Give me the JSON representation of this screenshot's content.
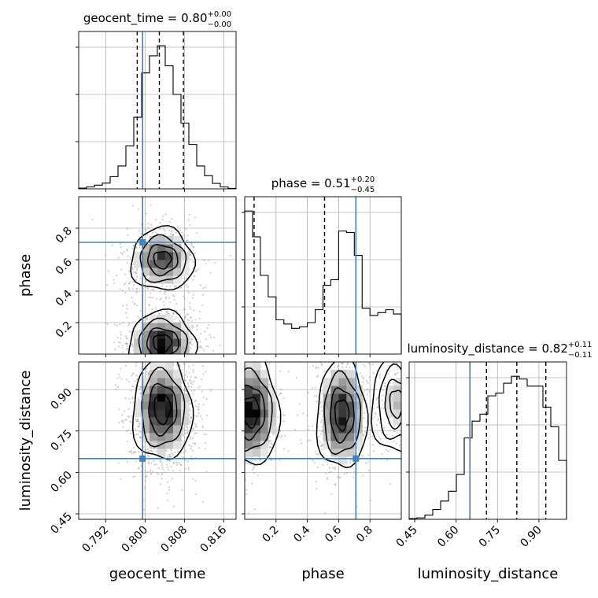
{
  "chart_data": {
    "type": "corner",
    "parameters": [
      "geocent_time",
      "phase",
      "luminosity_distance"
    ],
    "truths": {
      "geocent_time": 0.7995,
      "phase": 0.71,
      "luminosity_distance": 0.65
    },
    "truth_color": "#4682b4",
    "panels": [
      {
        "id": "geocent_time_hist",
        "type": "histogram",
        "param": "geocent_time",
        "title_label": "geocent_time = 0.80",
        "title_sup": "+0.00",
        "title_sub": "−0.00",
        "xlim": [
          0.7865,
          0.8185
        ],
        "quantiles": [
          0.7984,
          0.8029,
          0.8078
        ],
        "bin_edges": [
          0.7865,
          0.7881,
          0.7897,
          0.7913,
          0.7929,
          0.7945,
          0.7961,
          0.7977,
          0.7993,
          0.8009,
          0.8025,
          0.8041,
          0.8057,
          0.8073,
          0.8089,
          0.8105,
          0.8121,
          0.8137,
          0.8153,
          0.8169,
          0.8185
        ],
        "counts": [
          0.5,
          1.3,
          2.6,
          4.0,
          8.6,
          16,
          30,
          50,
          81,
          93,
          100,
          86,
          66,
          46,
          31,
          16,
          9.2,
          3.8,
          1.3,
          0.3
        ]
      },
      {
        "id": "phase_hist",
        "type": "histogram",
        "param": "phase",
        "title_label": "phase = 0.51",
        "title_sup": "+0.20",
        "title_sub": "−0.45",
        "xlim": [
          0.0,
          1.0
        ],
        "quantiles": [
          0.06,
          0.51,
          0.71
        ],
        "bin_edges": [
          0,
          0.05,
          0.1,
          0.15,
          0.2,
          0.25,
          0.3,
          0.35,
          0.4,
          0.45,
          0.5,
          0.55,
          0.6,
          0.65,
          0.7,
          0.75,
          0.8,
          0.85,
          0.9,
          0.95,
          1.0
        ],
        "counts": [
          100,
          82,
          55,
          40,
          24,
          21,
          18,
          19,
          22,
          31,
          48,
          52,
          86,
          85,
          69,
          32,
          27,
          29,
          31,
          28
        ]
      },
      {
        "id": "luminosity_distance_hist",
        "type": "histogram",
        "param": "luminosity_distance",
        "title_label": "luminosity_distance = 0.82",
        "title_sup": "+0.11",
        "title_sub": "−0.11",
        "xlim": [
          0.43,
          1.0
        ],
        "quantiles": [
          0.71,
          0.82,
          0.925
        ],
        "bin_edges": [
          0.43,
          0.4585,
          0.487,
          0.5155,
          0.544,
          0.5725,
          0.601,
          0.6295,
          0.658,
          0.6865,
          0.715,
          0.7435,
          0.772,
          0.8005,
          0.829,
          0.8575,
          0.886,
          0.9145,
          0.943,
          0.9715,
          1.0
        ],
        "counts": [
          0.5,
          1,
          3,
          7,
          13,
          20,
          32,
          58,
          70,
          75,
          88,
          90,
          97,
          102,
          100,
          95,
          95,
          80,
          66,
          42
        ]
      },
      {
        "id": "geocent_time_vs_phase",
        "type": "2d",
        "x": "geocent_time",
        "y": "phase",
        "xlim": [
          0.7865,
          0.8185
        ],
        "ylim": [
          0.0,
          1.0
        ],
        "modes": [
          {
            "x": 0.8035,
            "y": 0.6,
            "sx": 0.0032,
            "sy": 0.1,
            "w": 1.0
          },
          {
            "x": 0.8035,
            "y": 0.07,
            "sx": 0.0034,
            "sy": 0.1,
            "w": 1.25
          }
        ]
      },
      {
        "id": "geocent_time_vs_luminosity_distance",
        "type": "2d",
        "x": "geocent_time",
        "y": "luminosity_distance",
        "xlim": [
          0.7865,
          0.8185
        ],
        "ylim": [
          0.43,
          1.0
        ],
        "modes": [
          {
            "x": 0.8035,
            "y": 0.83,
            "sx": 0.003,
            "sy": 0.095,
            "w": 1.0
          }
        ]
      },
      {
        "id": "phase_vs_luminosity_distance",
        "type": "2d",
        "x": "phase",
        "y": "luminosity_distance",
        "xlim": [
          0.0,
          1.0
        ],
        "ylim": [
          0.43,
          1.0
        ],
        "modes": [
          {
            "x": 0.04,
            "y": 0.82,
            "sx": 0.09,
            "sy": 0.1,
            "w": 1.0
          },
          {
            "x": 0.62,
            "y": 0.81,
            "sx": 0.08,
            "sy": 0.1,
            "w": 0.95
          },
          {
            "x": 0.97,
            "y": 0.85,
            "sx": 0.08,
            "sy": 0.09,
            "w": 0.35
          }
        ]
      }
    ],
    "x_tick_labels": {
      "geocent_time": [
        "0.792",
        "0.800",
        "0.808",
        "0.816"
      ],
      "phase": [
        "0.2",
        "0.4",
        "0.6",
        "0.8"
      ],
      "luminosity_distance": [
        "0.45",
        "0.60",
        "0.75",
        "0.90"
      ]
    },
    "y_tick_labels": {
      "phase": [
        "0.2",
        "0.4",
        "0.6",
        "0.8"
      ],
      "luminosity_distance": [
        "0.45",
        "0.60",
        "0.75",
        "0.90"
      ]
    },
    "x_axis_labels": [
      "geocent_time",
      "phase",
      "luminosity_distance"
    ],
    "y_axis_labels": [
      "phase",
      "luminosity_distance"
    ],
    "grid": true
  }
}
